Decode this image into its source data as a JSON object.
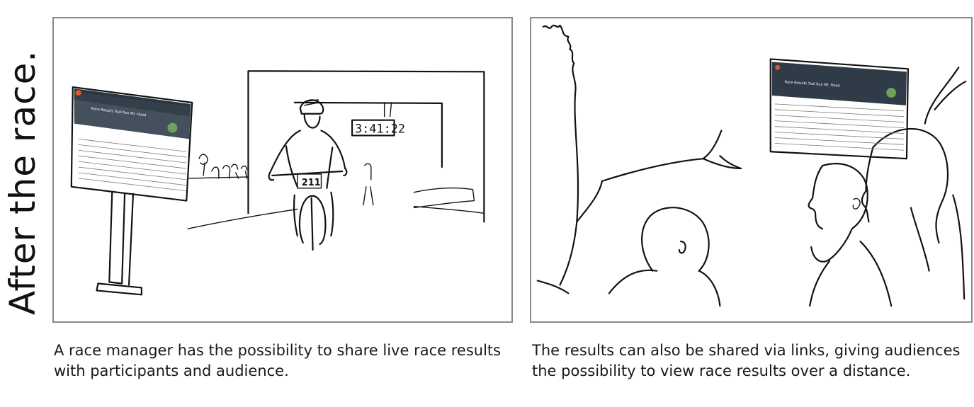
{
  "side_title": "After the race.",
  "left_panel": {
    "caption": "A race manager has the possibility to share live race results with participants and audience.",
    "screen_heading": "Race Results Trail Run Mt. Hood",
    "clock": "3:41:22",
    "bib": "211"
  },
  "right_panel": {
    "caption": "The results can also be shared via links, giving audiences the possibility to view race results over a distance.",
    "screen_heading": "Race Results Trail Run Mt. Hood"
  },
  "colors": {
    "panel_border": "#8a8a8a",
    "screen_dark": "#2b3540",
    "accent_orange": "#e4572e",
    "avatar_green": "#6fa35b"
  }
}
